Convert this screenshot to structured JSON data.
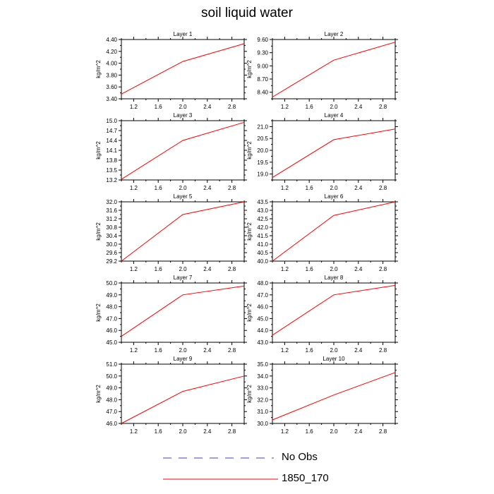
{
  "title": "soil liquid water",
  "chart_data": [
    {
      "type": "line",
      "title": "Layer 1",
      "ylabel": "kg/m^2",
      "x": [
        1,
        2,
        3
      ],
      "series": [
        {
          "name": "1850_170",
          "values": [
            3.48,
            4.03,
            4.33
          ]
        }
      ],
      "xlim": [
        1,
        3
      ],
      "ylim": [
        3.4,
        4.4
      ],
      "yticks": [
        "3.40",
        "3.60",
        "3.80",
        "4.00",
        "4.20",
        "4.40"
      ],
      "xticks": [
        "1.2",
        "1.6",
        "2.0",
        "2.4",
        "2.8"
      ]
    },
    {
      "type": "line",
      "title": "Layer 2",
      "ylabel": "kg/m^2",
      "x": [
        1,
        2,
        3
      ],
      "series": [
        {
          "name": "1850_170",
          "values": [
            8.29,
            9.13,
            9.54
          ]
        }
      ],
      "xlim": [
        1,
        3
      ],
      "ylim": [
        8.25,
        9.6
      ],
      "yticks": [
        "8.40",
        "8.70",
        "9.00",
        "9.30",
        "9.60"
      ],
      "xticks": [
        "1.2",
        "1.6",
        "2.0",
        "2.4",
        "2.8"
      ]
    },
    {
      "type": "line",
      "title": "Layer 3",
      "ylabel": "kg/m^2",
      "x": [
        1,
        2,
        3
      ],
      "series": [
        {
          "name": "1850_170",
          "values": [
            13.22,
            14.4,
            14.95
          ]
        }
      ],
      "xlim": [
        1,
        3
      ],
      "ylim": [
        13.2,
        15.0
      ],
      "yticks": [
        "13.2",
        "13.5",
        "13.8",
        "14.1",
        "14.4",
        "14.7",
        "15.0"
      ],
      "xticks": [
        "1.2",
        "1.6",
        "2.0",
        "2.4",
        "2.8"
      ]
    },
    {
      "type": "line",
      "title": "Layer 4",
      "ylabel": "kg/m^2",
      "x": [
        1,
        2,
        3
      ],
      "series": [
        {
          "name": "1850_170",
          "values": [
            18.85,
            20.45,
            20.9
          ]
        }
      ],
      "xlim": [
        1,
        3
      ],
      "ylim": [
        18.75,
        21.25
      ],
      "yticks": [
        "19.0",
        "19.5",
        "20.0",
        "20.5",
        "21.0"
      ],
      "xticks": [
        "1.2",
        "1.6",
        "2.0",
        "2.4",
        "2.8"
      ]
    },
    {
      "type": "line",
      "title": "Layer 5",
      "ylabel": "kg/m^2",
      "x": [
        1,
        2,
        3
      ],
      "series": [
        {
          "name": "1850_170",
          "values": [
            29.2,
            31.4,
            32.0
          ]
        }
      ],
      "xlim": [
        1,
        3
      ],
      "ylim": [
        29.2,
        32.0
      ],
      "yticks": [
        "29.2",
        "29.6",
        "30.0",
        "30.4",
        "30.8",
        "31.2",
        "31.6",
        "32.0"
      ],
      "xticks": [
        "1.2",
        "1.6",
        "2.0",
        "2.4",
        "2.8"
      ]
    },
    {
      "type": "line",
      "title": "Layer 6",
      "ylabel": "kg/m^2",
      "x": [
        1,
        2,
        3
      ],
      "series": [
        {
          "name": "1850_170",
          "values": [
            40.0,
            42.7,
            43.5
          ]
        }
      ],
      "xlim": [
        1,
        3
      ],
      "ylim": [
        40.0,
        43.5
      ],
      "yticks": [
        "40.0",
        "40.5",
        "41.0",
        "41.5",
        "42.0",
        "42.5",
        "43.0",
        "43.5"
      ],
      "xticks": [
        "1.2",
        "1.6",
        "2.0",
        "2.4",
        "2.8"
      ]
    },
    {
      "type": "line",
      "title": "Layer 7",
      "ylabel": "kg/m^2",
      "x": [
        1,
        2,
        3
      ],
      "series": [
        {
          "name": "1850_170",
          "values": [
            45.5,
            49.0,
            49.75
          ]
        }
      ],
      "xlim": [
        1,
        3
      ],
      "ylim": [
        45.0,
        50.0
      ],
      "yticks": [
        "45.0",
        "46.0",
        "47.0",
        "48.0",
        "49.0",
        "50.0"
      ],
      "xticks": [
        "1.2",
        "1.6",
        "2.0",
        "2.4",
        "2.8"
      ]
    },
    {
      "type": "line",
      "title": "Layer 8",
      "ylabel": "kg/m^2",
      "x": [
        1,
        2,
        3
      ],
      "series": [
        {
          "name": "1850_170",
          "values": [
            43.6,
            47.0,
            47.8
          ]
        }
      ],
      "xlim": [
        1,
        3
      ],
      "ylim": [
        43.0,
        48.0
      ],
      "yticks": [
        "43.0",
        "44.0",
        "45.0",
        "46.0",
        "47.0",
        "48.0"
      ],
      "xticks": [
        "1.2",
        "1.6",
        "2.0",
        "2.4",
        "2.8"
      ]
    },
    {
      "type": "line",
      "title": "Layer 9",
      "ylabel": "kg/m^2",
      "x": [
        1,
        2,
        3
      ],
      "series": [
        {
          "name": "1850_170",
          "values": [
            46.0,
            48.7,
            50.0
          ]
        }
      ],
      "xlim": [
        1,
        3
      ],
      "ylim": [
        46.0,
        51.0
      ],
      "yticks": [
        "46.0",
        "47.0",
        "48.0",
        "49.0",
        "50.0",
        "51.0"
      ],
      "xticks": [
        "1.2",
        "1.6",
        "2.0",
        "2.4",
        "2.8"
      ]
    },
    {
      "type": "line",
      "title": "Layer 10",
      "ylabel": "kg/m^2",
      "x": [
        1,
        2,
        3
      ],
      "series": [
        {
          "name": "1850_170",
          "values": [
            30.3,
            32.4,
            34.3
          ]
        }
      ],
      "xlim": [
        1,
        3
      ],
      "ylim": [
        30.0,
        35.0
      ],
      "yticks": [
        "30.0",
        "31.0",
        "32.0",
        "33.0",
        "34.0",
        "35.0"
      ],
      "xticks": [
        "1.2",
        "1.6",
        "2.0",
        "2.4",
        "2.8"
      ]
    }
  ],
  "legend": [
    {
      "label": "No Obs",
      "style": "dashed",
      "color": "#3b3bd0"
    },
    {
      "label": "1850_170",
      "style": "solid",
      "color": "#ff0000"
    }
  ]
}
